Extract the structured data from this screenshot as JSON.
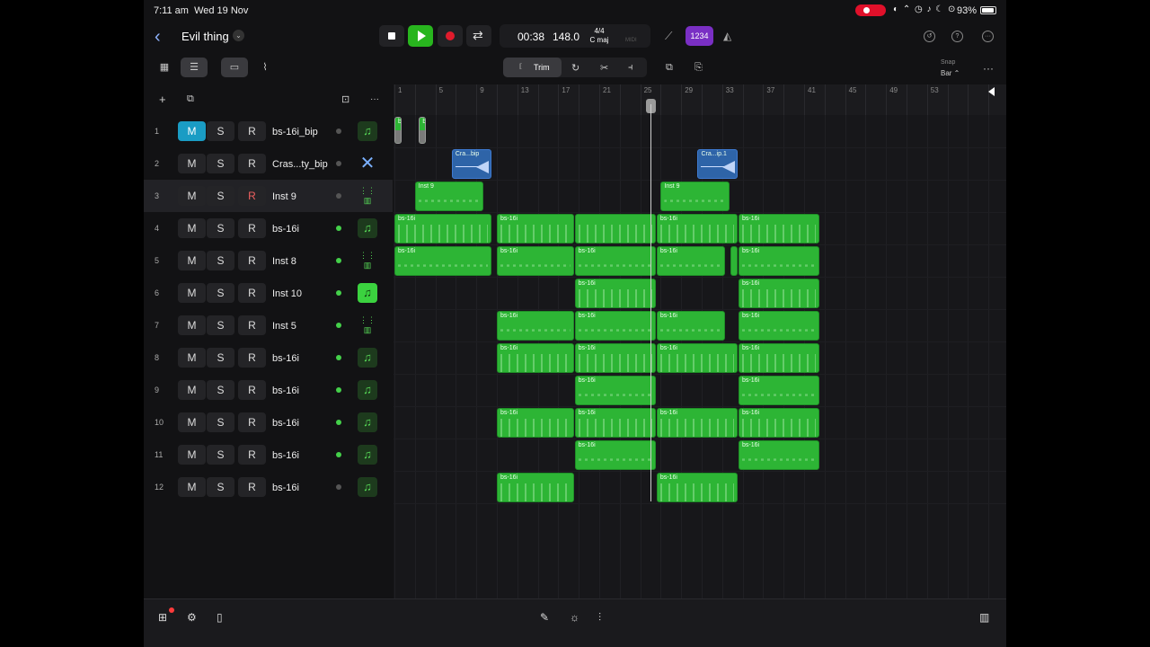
{
  "status": {
    "time": "7:11 am",
    "date": "Wed 19 Nov",
    "battery": "93%",
    "icons": "◐ ⌃ ◷ ♪ ☾ ⊙"
  },
  "header": {
    "back_glyph": "‹",
    "project_title": "Evil thing",
    "chevron_glyph": "⌄",
    "lcd": {
      "time": "00:38",
      "tempo": "148.0",
      "time_signature": "4/4",
      "key": "C maj",
      "ghost": "MIDI"
    },
    "count_in": "1234",
    "tuner_glyph": "⟋",
    "metronome_glyph": "◭",
    "icons": {
      "undo": "↺",
      "help": "?",
      "more": "···"
    }
  },
  "toolbar": {
    "grid_glyph": "▦",
    "tracks_glyph": "☰",
    "region_glyph": "▭",
    "automation_glyph": "⌇",
    "trim_label": "Trim",
    "trim_glyph": "⟦",
    "loop_glyph": "↻",
    "split_glyph": "✂",
    "join_glyph": "⫞",
    "copy_glyph": "⧉",
    "paste_glyph": "⎘",
    "snap_label": "Snap",
    "snap_value": "Bar ⌃",
    "more_glyph": "···"
  },
  "track_header_tools": {
    "add": "+",
    "duplicate": "⧉",
    "import": "⊡",
    "more": "···"
  },
  "ruler": [
    "1",
    "5",
    "9",
    "13",
    "17",
    "21",
    "25",
    "29",
    "33",
    "37",
    "41",
    "45",
    "49",
    "53"
  ],
  "tracks": [
    {
      "num": "1",
      "mute": "M",
      "solo": "S",
      "rec": "R",
      "name": "bs-16i_bip",
      "type": "midi",
      "dot": false,
      "muted": true
    },
    {
      "num": "2",
      "mute": "M",
      "solo": "S",
      "rec": "R",
      "name": "Cras...ty_bip",
      "type": "audio",
      "dot": false
    },
    {
      "num": "3",
      "mute": "M",
      "solo": "S",
      "rec": "R",
      "name": "Inst 9",
      "type": "synth",
      "dot": false,
      "rec_armed": true,
      "selected": true
    },
    {
      "num": "4",
      "mute": "M",
      "solo": "S",
      "rec": "R",
      "name": "bs-16i",
      "type": "midi",
      "dot": true
    },
    {
      "num": "5",
      "mute": "M",
      "solo": "S",
      "rec": "R",
      "name": "Inst 8",
      "type": "synth",
      "dot": true
    },
    {
      "num": "6",
      "mute": "M",
      "solo": "S",
      "rec": "R",
      "name": "Inst 10",
      "type": "midi-bright",
      "dot": true
    },
    {
      "num": "7",
      "mute": "M",
      "solo": "S",
      "rec": "R",
      "name": "Inst 5",
      "type": "synth",
      "dot": true
    },
    {
      "num": "8",
      "mute": "M",
      "solo": "S",
      "rec": "R",
      "name": "bs-16i",
      "type": "midi",
      "dot": true
    },
    {
      "num": "9",
      "mute": "M",
      "solo": "S",
      "rec": "R",
      "name": "bs-16i",
      "type": "midi",
      "dot": true
    },
    {
      "num": "10",
      "mute": "M",
      "solo": "S",
      "rec": "R",
      "name": "bs-16i",
      "type": "midi",
      "dot": true
    },
    {
      "num": "11",
      "mute": "M",
      "solo": "S",
      "rec": "R",
      "name": "bs-16i",
      "type": "midi",
      "dot": true
    },
    {
      "num": "12",
      "mute": "M",
      "solo": "S",
      "rec": "R",
      "name": "bs-16i",
      "type": "midi",
      "dot": false
    }
  ],
  "icons": {
    "midi": "♫",
    "synth": "⋮⋮\n▥",
    "audio": "✕"
  },
  "clips": [
    {
      "row": 0,
      "start": 1,
      "end": 3,
      "label": "b...p",
      "kind": "gray"
    },
    {
      "row": 0,
      "start": 7,
      "end": 9,
      "label": "b...1",
      "kind": "gray"
    },
    {
      "row": 1,
      "start": 15,
      "end": 25,
      "label": "Cra...bip",
      "kind": "audio"
    },
    {
      "row": 1,
      "start": 75,
      "end": 85,
      "label": "Cra...ip.1",
      "kind": "audio"
    },
    {
      "row": 2,
      "start": 6,
      "end": 23,
      "label": "Inst 9",
      "kind": "midi"
    },
    {
      "row": 2,
      "start": 66,
      "end": 83,
      "label": "Inst 9",
      "kind": "midi"
    },
    {
      "row": 3,
      "start": 1,
      "end": 25,
      "label": "bs-16i",
      "kind": "midi"
    },
    {
      "row": 3,
      "start": 26,
      "end": 45,
      "label": "bs-16i",
      "kind": "midi"
    },
    {
      "row": 3,
      "start": 45,
      "end": 65,
      "label": "",
      "kind": "midi"
    },
    {
      "row": 3,
      "start": 65,
      "end": 85,
      "label": "bs-16i",
      "kind": "midi"
    },
    {
      "row": 3,
      "start": 85,
      "end": 105,
      "label": "bs-16i",
      "kind": "midi"
    },
    {
      "row": 4,
      "start": 1,
      "end": 25,
      "label": "bs-16i",
      "kind": "midi"
    },
    {
      "row": 4,
      "start": 26,
      "end": 45,
      "label": "bs-16i",
      "kind": "midi"
    },
    {
      "row": 4,
      "start": 45,
      "end": 65,
      "label": "bs-16i",
      "kind": "midi"
    },
    {
      "row": 4,
      "start": 65,
      "end": 82,
      "label": "bs-16i",
      "kind": "midi"
    },
    {
      "row": 4,
      "start": 83,
      "end": 85,
      "label": "",
      "kind": "midi"
    },
    {
      "row": 4,
      "start": 85,
      "end": 105,
      "label": "bs-16i",
      "kind": "midi"
    },
    {
      "row": 5,
      "start": 45,
      "end": 65,
      "label": "bs-16i",
      "kind": "midi"
    },
    {
      "row": 5,
      "start": 85,
      "end": 105,
      "label": "bs-16i",
      "kind": "midi"
    },
    {
      "row": 6,
      "start": 26,
      "end": 45,
      "label": "bs-16i",
      "kind": "midi"
    },
    {
      "row": 6,
      "start": 45,
      "end": 65,
      "label": "bs-16i",
      "kind": "midi"
    },
    {
      "row": 6,
      "start": 65,
      "end": 82,
      "label": "bs-16i",
      "kind": "midi"
    },
    {
      "row": 6,
      "start": 85,
      "end": 105,
      "label": "bs-16i",
      "kind": "midi"
    },
    {
      "row": 7,
      "start": 26,
      "end": 45,
      "label": "bs-16i",
      "kind": "midi"
    },
    {
      "row": 7,
      "start": 45,
      "end": 65,
      "label": "bs-16i",
      "kind": "midi"
    },
    {
      "row": 7,
      "start": 65,
      "end": 85,
      "label": "bs-16i",
      "kind": "midi"
    },
    {
      "row": 7,
      "start": 85,
      "end": 105,
      "label": "bs-16i",
      "kind": "midi"
    },
    {
      "row": 8,
      "start": 45,
      "end": 65,
      "label": "bs-16i",
      "kind": "midi"
    },
    {
      "row": 8,
      "start": 85,
      "end": 105,
      "label": "bs-16i",
      "kind": "midi"
    },
    {
      "row": 9,
      "start": 26,
      "end": 45,
      "label": "bs-16i",
      "kind": "midi"
    },
    {
      "row": 9,
      "start": 45,
      "end": 65,
      "label": "bs-16i",
      "kind": "midi"
    },
    {
      "row": 9,
      "start": 65,
      "end": 85,
      "label": "bs-16i",
      "kind": "midi"
    },
    {
      "row": 9,
      "start": 85,
      "end": 105,
      "label": "bs-16i",
      "kind": "midi"
    },
    {
      "row": 10,
      "start": 45,
      "end": 65,
      "label": "bs-16i",
      "kind": "midi"
    },
    {
      "row": 10,
      "start": 85,
      "end": 105,
      "label": "bs-16i",
      "kind": "midi"
    },
    {
      "row": 11,
      "start": 26,
      "end": 45,
      "label": "bs-16i",
      "kind": "midi"
    },
    {
      "row": 11,
      "start": 65,
      "end": 85,
      "label": "bs-16i",
      "kind": "midi"
    }
  ],
  "playhead_bar": 26,
  "end_marker_bar": 59,
  "bottom": {
    "library": "⊞",
    "mixer": "⚙",
    "browser": "▯",
    "pencil": "✎",
    "fx": "☼",
    "eq": "⫶",
    "keys": "▥"
  },
  "colors": {
    "midi_clip": "#2db535",
    "audio_clip": "#2e64a8",
    "mute_on": "#1a9cc4",
    "play": "#28b51e",
    "count_in": "#7a2fc4"
  }
}
